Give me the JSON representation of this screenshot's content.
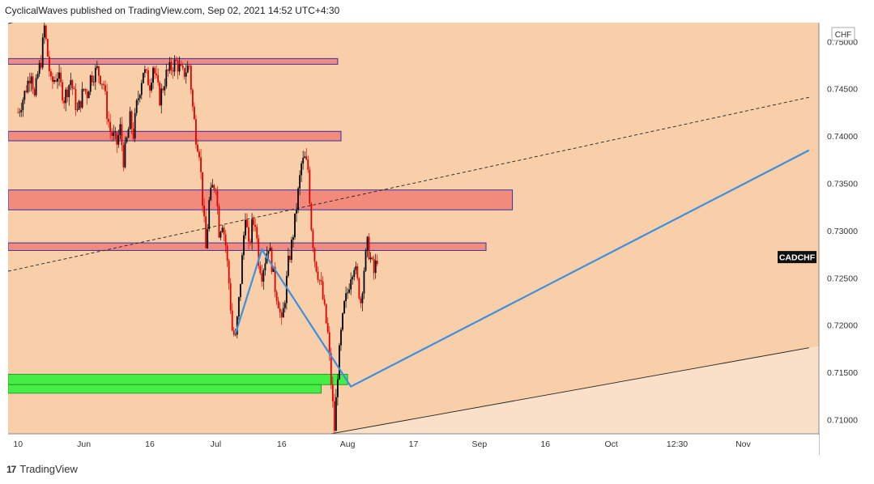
{
  "header": {
    "published_text": "CyclicalWaves published on TradingView.com, Sep 02, 2021 14:52 UTC+4:30"
  },
  "footer": {
    "brand": "TradingView",
    "logo_glyph": "17"
  },
  "chart_data": {
    "type": "candlestick",
    "symbol": "CADCHF",
    "currency": "CHF",
    "ylim": [
      0.7085,
      0.752
    ],
    "y_ticks": [
      "0.75000",
      "0.74500",
      "0.74000",
      "0.73500",
      "0.73000",
      "0.72500",
      "0.72000",
      "0.71500",
      "0.71000"
    ],
    "y_tick_values": [
      0.75,
      0.745,
      0.74,
      0.735,
      0.73,
      0.725,
      0.72,
      0.715,
      0.71
    ],
    "x_ticks": [
      "10",
      "Jun",
      "16",
      "Jul",
      "16",
      "Aug",
      "17",
      "Sep",
      "16",
      "Oct",
      "12:30",
      "Nov"
    ],
    "x_tick_pos": [
      0,
      20,
      40,
      60,
      80,
      100,
      120,
      140,
      160,
      180,
      200,
      220
    ],
    "x_range": [
      -3,
      243
    ],
    "last_price_label": "CADCHF",
    "last_price": 0.7272,
    "colors": {
      "bull": "#000000",
      "bear": "#e00000",
      "zone": "#f38b7d",
      "zone_border": "#3333aa",
      "demand": "#44ee44",
      "trend_blue": "#3d8fe0",
      "bg_channel": "#f8cfa8",
      "bg_outside": "#fae0c8"
    },
    "price_path": [
      [
        0,
        0.7425
      ],
      [
        2,
        0.7445
      ],
      [
        4,
        0.747
      ],
      [
        5,
        0.744
      ],
      [
        6,
        0.7465
      ],
      [
        7,
        0.748
      ],
      [
        8,
        0.7515
      ],
      [
        9,
        0.7485
      ],
      [
        10,
        0.7455
      ],
      [
        12,
        0.7465
      ],
      [
        14,
        0.744
      ],
      [
        16,
        0.746
      ],
      [
        18,
        0.7425
      ],
      [
        20,
        0.745
      ],
      [
        21,
        0.7445
      ],
      [
        22,
        0.7462
      ],
      [
        24,
        0.747
      ],
      [
        26,
        0.7455
      ],
      [
        27,
        0.7425
      ],
      [
        28,
        0.7405
      ],
      [
        30,
        0.7392
      ],
      [
        31,
        0.7408
      ],
      [
        32,
        0.7375
      ],
      [
        33,
        0.7395
      ],
      [
        34,
        0.7418
      ],
      [
        35,
        0.7402
      ],
      [
        36,
        0.7432
      ],
      [
        38,
        0.747
      ],
      [
        40,
        0.7455
      ],
      [
        41,
        0.7475
      ],
      [
        43,
        0.744
      ],
      [
        45,
        0.7465
      ],
      [
        47,
        0.7475
      ],
      [
        48,
        0.7478
      ],
      [
        50,
        0.7465
      ],
      [
        52,
        0.7475
      ],
      [
        53,
        0.743
      ],
      [
        54,
        0.74
      ],
      [
        55,
        0.7385
      ],
      [
        57,
        0.728
      ],
      [
        58,
        0.733
      ],
      [
        59,
        0.7345
      ],
      [
        60,
        0.735
      ],
      [
        61,
        0.73
      ],
      [
        62,
        0.731
      ],
      [
        63,
        0.7285
      ],
      [
        64,
        0.7245
      ],
      [
        65,
        0.7195
      ],
      [
        66,
        0.7185
      ],
      [
        67,
        0.7225
      ],
      [
        68,
        0.727
      ],
      [
        69,
        0.732
      ],
      [
        70,
        0.728
      ],
      [
        71,
        0.7305
      ],
      [
        72,
        0.731
      ],
      [
        73,
        0.727
      ],
      [
        74,
        0.7255
      ],
      [
        75,
        0.727
      ],
      [
        76,
        0.7285
      ],
      [
        77,
        0.7265
      ],
      [
        78,
        0.724
      ],
      [
        79,
        0.7225
      ],
      [
        80,
        0.72
      ],
      [
        81,
        0.723
      ],
      [
        82,
        0.7265
      ],
      [
        83,
        0.7285
      ],
      [
        84,
        0.731
      ],
      [
        85,
        0.734
      ],
      [
        86,
        0.737
      ],
      [
        87,
        0.7375
      ],
      [
        88,
        0.7365
      ],
      [
        89,
        0.7305
      ],
      [
        90,
        0.727
      ],
      [
        91,
        0.7255
      ],
      [
        92,
        0.724
      ],
      [
        93,
        0.7215
      ],
      [
        94,
        0.719
      ],
      [
        95,
        0.714
      ],
      [
        96,
        0.709
      ],
      [
        97,
        0.715
      ],
      [
        98,
        0.719
      ],
      [
        99,
        0.722
      ],
      [
        100,
        0.7235
      ],
      [
        101,
        0.7255
      ],
      [
        102,
        0.7265
      ],
      [
        103,
        0.7245
      ],
      [
        104,
        0.7225
      ],
      [
        105,
        0.726
      ],
      [
        106,
        0.7285
      ],
      [
        107,
        0.727
      ],
      [
        108,
        0.7255
      ],
      [
        109,
        0.7272
      ]
    ],
    "zones": [
      {
        "kind": "resistance",
        "from_x": -3,
        "to_x": 97,
        "y_low": 0.7476,
        "y_high": 0.7482
      },
      {
        "kind": "resistance",
        "from_x": -3,
        "to_x": 98,
        "y_low": 0.7395,
        "y_high": 0.7405
      },
      {
        "kind": "resistance",
        "from_x": -3,
        "to_x": 150,
        "y_low": 0.7322,
        "y_high": 0.7343
      },
      {
        "kind": "resistance",
        "from_x": -3,
        "to_x": 142,
        "y_low": 0.7279,
        "y_high": 0.7287
      },
      {
        "kind": "demand",
        "from_x": -3,
        "to_x": 100,
        "y_low": 0.7137,
        "y_high": 0.7148
      },
      {
        "kind": "demand",
        "from_x": -3,
        "to_x": 92,
        "y_low": 0.7128,
        "y_high": 0.7137
      }
    ],
    "trendlines": [
      {
        "kind": "channel-top",
        "points": [
          [
            -3,
            0.7519
          ],
          [
            21,
            0.754
          ]
        ]
      },
      {
        "kind": "channel-bottom",
        "points": [
          [
            55,
            0.706
          ],
          [
            240,
            0.7176
          ]
        ]
      },
      {
        "kind": "dashed",
        "points": [
          [
            -3,
            0.7257
          ],
          [
            240,
            0.7441
          ]
        ]
      },
      {
        "kind": "blue",
        "points": [
          [
            66,
            0.7191
          ],
          [
            74,
            0.728
          ],
          [
            101,
            0.7135
          ],
          [
            240,
            0.7385
          ]
        ]
      }
    ]
  }
}
